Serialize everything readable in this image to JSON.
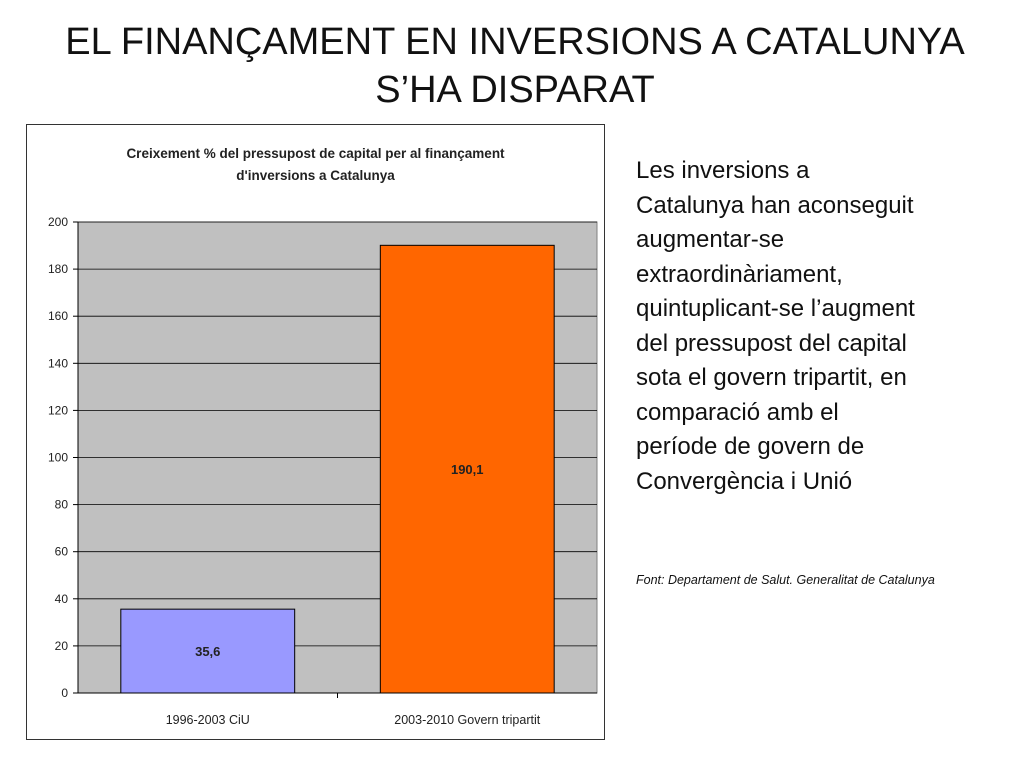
{
  "title": {
    "line1": "EL FINANÇAMENT EN INVERSIONS A CATALUNYA",
    "line2": "S’HA DISPARAT"
  },
  "body_text": {
    "lines": [
      "Les inversions a",
      "Catalunya han aconseguit",
      "augmentar-se",
      "extraordinàriament,",
      "quintuplicant-se l’augment",
      "del pressupost del capital",
      "sota el govern tripartit, en",
      "comparació amb el",
      "període de govern de",
      "Convergència i Unió"
    ]
  },
  "source": "Font: Departament de Salut. Generalitat de Catalunya",
  "colors": {
    "bar_ciu": "#9999ff",
    "bar_tripartit": "#ff6600",
    "plot_background": "#c0c0c0"
  },
  "chart_data": {
    "type": "bar",
    "title_lines": [
      "Creixement % del pressupost de capital per al finançament",
      "d'inversions a Catalunya"
    ],
    "categories": [
      "1996-2003 CiU",
      "2003-2010 Govern tripartit"
    ],
    "values": [
      35.6,
      190.1
    ],
    "value_labels": [
      "35,6",
      "190,1"
    ],
    "ylim": [
      0,
      200
    ],
    "yticks": [
      0,
      20,
      40,
      60,
      80,
      100,
      120,
      140,
      160,
      180,
      200
    ],
    "grid": true,
    "legend": "none"
  }
}
